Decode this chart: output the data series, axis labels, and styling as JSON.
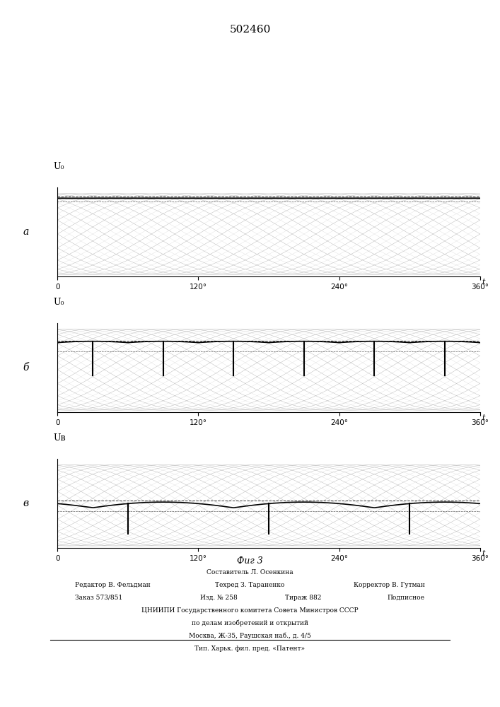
{
  "title": "502460",
  "fig_caption": "Фиг 3",
  "subplot_labels": [
    "а",
    "б",
    "в"
  ],
  "ylabel_labels_a": "U₀",
  "ylabel_labels_b": "U₀",
  "ylabel_labels_c": "Uв",
  "xlabel_tick_labels": [
    "0",
    "120°",
    "240°",
    "360°"
  ],
  "xlabel_ticks": [
    0,
    120,
    240,
    360
  ],
  "bg_color": "#ffffff",
  "plot_bg": "#f0f0f0",
  "thin_line_color": "#999999",
  "thick_line_color": "#000000",
  "amplitude": 1.0,
  "n_thin_waves": 18,
  "bottom_texts_line1_left": "Редактор В. Фельдман",
  "bottom_texts_line1_center": "Техред З. Тараненко",
  "bottom_texts_line1_right": "Корректор В. Гутман",
  "bottom_texts_line2_left": "Заказ 573/851",
  "bottom_texts_line2_c1": "Изд. № 258",
  "bottom_texts_line2_c2": "Тираж 882",
  "bottom_texts_line2_right": "Подписное",
  "bottom_texts_line3": "ЦНИИПИ Государственного комитета Совета Министров СССР",
  "bottom_texts_line4": "по делам изобретений и открытий",
  "bottom_texts_line5": "Москва, Ж-35, Раушская наб., д. 4/5",
  "bottom_texts_line6": "Тип. Харьк. фил. пред. «Патент»",
  "bottom_texts_sestavitel": "Составитель Л. Осенкина"
}
